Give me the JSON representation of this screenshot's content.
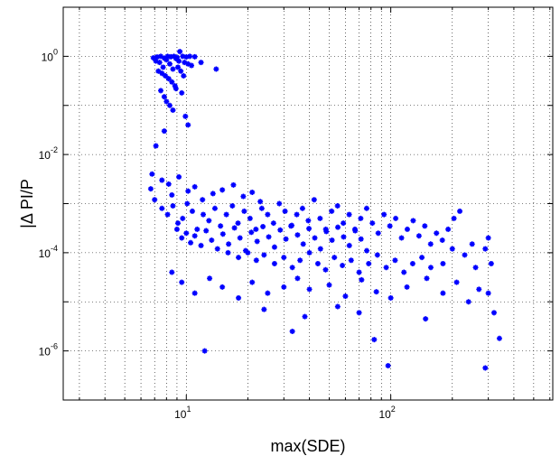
{
  "chart_data": {
    "type": "scatter",
    "xscale": "log",
    "yscale": "log",
    "xlabel": "max(SDE)",
    "ylabel": "|Δ PI/P",
    "xlim": [
      2.5,
      620
    ],
    "ylim": [
      1e-07,
      10
    ],
    "grid": true,
    "grid_style": "dotted",
    "marker": "*",
    "marker_color": "#0000ff",
    "x_ticks": [
      {
        "base": "10",
        "exp": "1"
      },
      {
        "base": "10",
        "exp": "2"
      }
    ],
    "y_ticks": [
      {
        "base": "10",
        "exp": "0"
      },
      {
        "base": "10",
        "exp": "-2"
      },
      {
        "base": "10",
        "exp": "-4"
      },
      {
        "base": "10",
        "exp": "-6"
      }
    ],
    "points": [
      [
        7.2,
        0.97
      ],
      [
        7.5,
        1.0
      ],
      [
        7.8,
        0.92
      ],
      [
        8.1,
        1.0
      ],
      [
        8.4,
        0.98
      ],
      [
        8.7,
        1.0
      ],
      [
        9.0,
        0.95
      ],
      [
        9.3,
        1.25
      ],
      [
        9.6,
        1.0
      ],
      [
        10.0,
        0.97
      ],
      [
        10.4,
        1.0
      ],
      [
        11.0,
        0.98
      ],
      [
        6.9,
        0.93
      ],
      [
        7.1,
        0.8
      ],
      [
        7.4,
        0.75
      ],
      [
        7.7,
        0.6
      ],
      [
        8.0,
        0.85
      ],
      [
        8.3,
        0.7
      ],
      [
        8.6,
        0.55
      ],
      [
        8.9,
        0.9
      ],
      [
        9.2,
        0.8
      ],
      [
        9.8,
        0.75
      ],
      [
        10.2,
        0.7
      ],
      [
        10.6,
        0.65
      ],
      [
        7.3,
        0.5
      ],
      [
        7.6,
        0.45
      ],
      [
        7.9,
        0.4
      ],
      [
        8.2,
        0.35
      ],
      [
        8.5,
        0.3
      ],
      [
        8.8,
        0.25
      ],
      [
        9.1,
        0.6
      ],
      [
        9.4,
        0.5
      ],
      [
        9.7,
        0.4
      ],
      [
        7.5,
        0.2
      ],
      [
        7.8,
        0.15
      ],
      [
        8.0,
        0.12
      ],
      [
        8.3,
        0.1
      ],
      [
        8.6,
        0.08
      ],
      [
        8.9,
        0.22
      ],
      [
        9.5,
        0.18
      ],
      [
        9.9,
        0.06
      ],
      [
        10.2,
        0.04
      ],
      [
        7.8,
        0.03
      ],
      [
        7.1,
        0.015
      ],
      [
        11.8,
        0.75
      ],
      [
        14.0,
        0.55
      ],
      [
        6.8,
        0.004
      ],
      [
        6.7,
        0.002
      ],
      [
        7.6,
        0.003
      ],
      [
        8.2,
        0.0025
      ],
      [
        8.5,
        0.0015
      ],
      [
        9.2,
        0.0035
      ],
      [
        10.2,
        0.0018
      ],
      [
        11.0,
        0.0022
      ],
      [
        12.0,
        0.0012
      ],
      [
        13.5,
        0.0016
      ],
      [
        15.0,
        0.0019
      ],
      [
        17.0,
        0.0024
      ],
      [
        19.0,
        0.0014
      ],
      [
        21.0,
        0.0017
      ],
      [
        23.0,
        0.0011
      ],
      [
        7.0,
        0.0012
      ],
      [
        7.6,
        0.0008
      ],
      [
        8.1,
        0.0006
      ],
      [
        8.6,
        0.0009
      ],
      [
        9.1,
        0.0004
      ],
      [
        9.6,
        0.0005
      ],
      [
        10.1,
        0.001
      ],
      [
        10.7,
        0.0007
      ],
      [
        11.3,
        0.0003
      ],
      [
        12.1,
        0.0006
      ],
      [
        12.9,
        0.00045
      ],
      [
        13.8,
        0.0008
      ],
      [
        14.7,
        0.00035
      ],
      [
        15.7,
        0.0006
      ],
      [
        16.8,
        0.0009
      ],
      [
        17.9,
        0.0004
      ],
      [
        19.2,
        0.0007
      ],
      [
        20.5,
        0.0005
      ],
      [
        21.9,
        0.0003
      ],
      [
        23.4,
        0.0008
      ],
      [
        25.0,
        0.0006
      ],
      [
        26.7,
        0.0004
      ],
      [
        28.5,
        0.001
      ],
      [
        30.4,
        0.0007
      ],
      [
        32.5,
        0.00035
      ],
      [
        34.7,
        0.0006
      ],
      [
        37.0,
        0.0008
      ],
      [
        39.5,
        0.00045
      ],
      [
        42.2,
        0.0012
      ],
      [
        45.1,
        0.0005
      ],
      [
        48.1,
        0.0003
      ],
      [
        51.4,
        0.0007
      ],
      [
        54.9,
        0.0009
      ],
      [
        58.6,
        0.0004
      ],
      [
        62.6,
        0.0006
      ],
      [
        66.8,
        0.0003
      ],
      [
        71.3,
        0.0005
      ],
      [
        76.2,
        0.0008
      ],
      [
        81.3,
        0.0004
      ],
      [
        86.8,
        0.00025
      ],
      [
        92.7,
        0.0006
      ],
      [
        99.0,
        0.00035
      ],
      [
        105.7,
        0.0005
      ],
      [
        112.9,
        0.0002
      ],
      [
        120.5,
        0.0003
      ],
      [
        128.7,
        0.00045
      ],
      [
        137.4,
        0.00022
      ],
      [
        146.7,
        0.00035
      ],
      [
        156.7,
        0.00015
      ],
      [
        167.3,
        0.00025
      ],
      [
        178.7,
        0.00018
      ],
      [
        190.8,
        0.0003
      ],
      [
        203.7,
        0.0005
      ],
      [
        217.6,
        0.0007
      ],
      [
        9.0,
        0.0003
      ],
      [
        9.5,
        0.0002
      ],
      [
        10.0,
        0.00025
      ],
      [
        10.5,
        0.00016
      ],
      [
        11.0,
        0.00022
      ],
      [
        11.8,
        0.00014
      ],
      [
        12.5,
        0.00028
      ],
      [
        13.3,
        0.00018
      ],
      [
        14.2,
        0.00012
      ],
      [
        15.1,
        0.00024
      ],
      [
        16.1,
        0.00015
      ],
      [
        17.2,
        0.00032
      ],
      [
        18.3,
        0.0002
      ],
      [
        19.5,
        0.00011
      ],
      [
        20.8,
        0.00026
      ],
      [
        22.2,
        0.00017
      ],
      [
        23.7,
        0.00034
      ],
      [
        25.3,
        0.00021
      ],
      [
        27.0,
        0.00013
      ],
      [
        28.8,
        0.00029
      ],
      [
        30.7,
        0.00019
      ],
      [
        32.8,
        0.00036
      ],
      [
        35.0,
        0.00023
      ],
      [
        37.3,
        0.00015
      ],
      [
        39.8,
        0.00031
      ],
      [
        42.5,
        0.0002
      ],
      [
        45.3,
        0.00012
      ],
      [
        48.4,
        0.00027
      ],
      [
        51.6,
        0.00018
      ],
      [
        55.1,
        0.00033
      ],
      [
        58.8,
        0.00021
      ],
      [
        62.7,
        0.00014
      ],
      [
        67.0,
        0.00028
      ],
      [
        71.5,
        0.00019
      ],
      [
        76.3,
        0.00011
      ],
      [
        16.0,
        0.0001
      ],
      [
        18.0,
        8e-05
      ],
      [
        20.0,
        0.0001
      ],
      [
        22.0,
        7e-05
      ],
      [
        24.0,
        9e-05
      ],
      [
        27.0,
        6e-05
      ],
      [
        30.0,
        8e-05
      ],
      [
        33.0,
        5e-05
      ],
      [
        36.0,
        7e-05
      ],
      [
        40.0,
        0.0001
      ],
      [
        44.0,
        6e-05
      ],
      [
        48.0,
        4.5e-05
      ],
      [
        53.0,
        8e-05
      ],
      [
        58.0,
        5.5e-05
      ],
      [
        64.0,
        7e-05
      ],
      [
        70.0,
        4e-05
      ],
      [
        78.0,
        6e-05
      ],
      [
        86.0,
        9e-05
      ],
      [
        95.0,
        5e-05
      ],
      [
        105.0,
        7e-05
      ],
      [
        116.0,
        4e-05
      ],
      [
        128.0,
        6e-05
      ],
      [
        142.0,
        8e-05
      ],
      [
        157.0,
        5e-05
      ],
      [
        8.5,
        4e-05
      ],
      [
        9.5,
        2.5e-05
      ],
      [
        11.0,
        1.5e-05
      ],
      [
        13.0,
        3e-05
      ],
      [
        15.0,
        2e-05
      ],
      [
        18.0,
        1.2e-05
      ],
      [
        21.0,
        2.5e-05
      ],
      [
        25.0,
        1.5e-05
      ],
      [
        30.0,
        2e-05
      ],
      [
        35.0,
        3e-05
      ],
      [
        40.0,
        1.8e-05
      ],
      [
        50.0,
        2.2e-05
      ],
      [
        60.0,
        1.3e-05
      ],
      [
        72.0,
        2.8e-05
      ],
      [
        85.0,
        1.6e-05
      ],
      [
        100.0,
        1.2e-05
      ],
      [
        120.0,
        2e-05
      ],
      [
        150.0,
        3e-05
      ],
      [
        180.0,
        1.5e-05
      ],
      [
        210.0,
        2.5e-05
      ],
      [
        240.0,
        1e-05
      ],
      [
        270.0,
        1.8e-05
      ],
      [
        24.0,
        7e-06
      ],
      [
        38.0,
        5e-06
      ],
      [
        55.0,
        8e-06
      ],
      [
        70.0,
        6e-06
      ],
      [
        148.0,
        4.5e-06
      ],
      [
        300.0,
        1.5e-05
      ],
      [
        310.0,
        6e-05
      ],
      [
        290.0,
        0.00012
      ],
      [
        300.0,
        0.0002
      ],
      [
        230.0,
        9e-05
      ],
      [
        250.0,
        0.00015
      ],
      [
        260.0,
        5e-05
      ],
      [
        200.0,
        0.00012
      ],
      [
        180.0,
        6e-05
      ],
      [
        12.3,
        1e-06
      ],
      [
        33.0,
        2.5e-06
      ],
      [
        83.0,
        1.7e-06
      ],
      [
        97.0,
        5e-07
      ],
      [
        290.0,
        4.5e-07
      ],
      [
        340.0,
        1.8e-06
      ],
      [
        320.0,
        6e-06
      ]
    ]
  }
}
